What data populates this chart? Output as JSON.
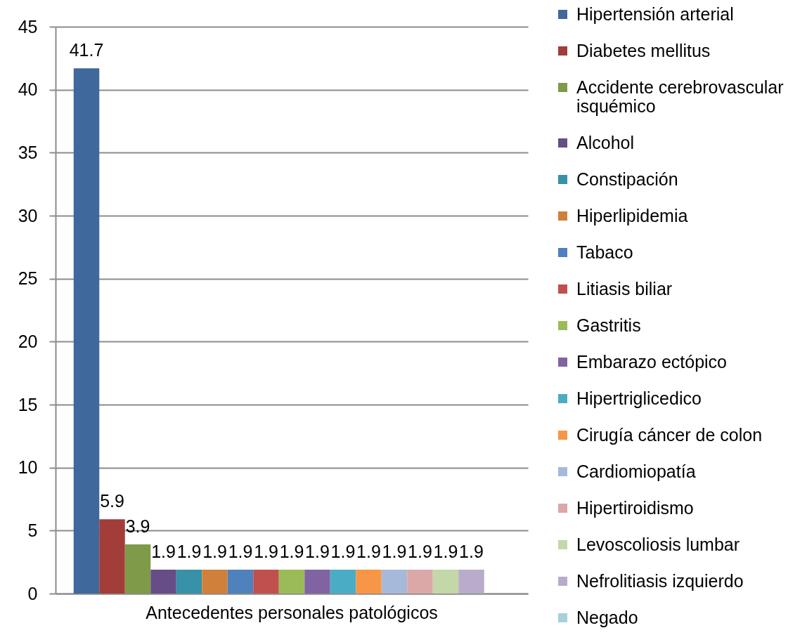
{
  "chart_data": {
    "type": "bar",
    "categories": [
      "Antecedentes personales patológicos"
    ],
    "series": [
      {
        "name": "Hipertensión arterial",
        "color": "#3f689c",
        "values": [
          41.7
        ]
      },
      {
        "name": "Diabetes mellitus",
        "color": "#a23d3a",
        "values": [
          5.9
        ]
      },
      {
        "name": "Accidente cerebrovascular isquémico",
        "color": "#7f9a48",
        "values": [
          3.9
        ]
      },
      {
        "name": "Alcohol",
        "color": "#664d87",
        "values": [
          1.9
        ]
      },
      {
        "name": "Constipación",
        "color": "#3791a8",
        "values": [
          1.9
        ]
      },
      {
        "name": "Hiperlipidemia",
        "color": "#d0803a",
        "values": [
          1.9
        ]
      },
      {
        "name": "Tabaco",
        "color": "#4f81bd",
        "values": [
          1.9
        ]
      },
      {
        "name": "Litiasis biliar",
        "color": "#c0504d",
        "values": [
          1.9
        ]
      },
      {
        "name": "Gastritis",
        "color": "#9bbb59",
        "values": [
          1.9
        ]
      },
      {
        "name": "Embarazo ectópico",
        "color": "#8064a2",
        "values": [
          1.9
        ]
      },
      {
        "name": "Hipertriglicedico",
        "color": "#4bacc6",
        "values": [
          1.9
        ]
      },
      {
        "name": "Cirugía cáncer de colon",
        "color": "#f79646",
        "values": [
          1.9
        ]
      },
      {
        "name": "Cardiomiopatía",
        "color": "#a7b9da",
        "values": [
          1.9
        ]
      },
      {
        "name": "Hipertiroidismo",
        "color": "#dba8a7",
        "values": [
          1.9
        ]
      },
      {
        "name": "Levoscoliosis lumbar",
        "color": "#c4d7a9",
        "values": [
          1.9
        ]
      },
      {
        "name": "Nefrolitiasis izquierdo",
        "color": "#b8acca",
        "values": [
          1.9
        ]
      },
      {
        "name": "Negado",
        "color": "#a5d1dd",
        "values": [
          null
        ]
      }
    ],
    "ylim": [
      0,
      45
    ],
    "yticks": [
      0,
      5,
      10,
      15,
      20,
      25,
      30,
      35,
      40,
      45
    ],
    "grid": "y",
    "legend": "right",
    "data_labels": true
  }
}
